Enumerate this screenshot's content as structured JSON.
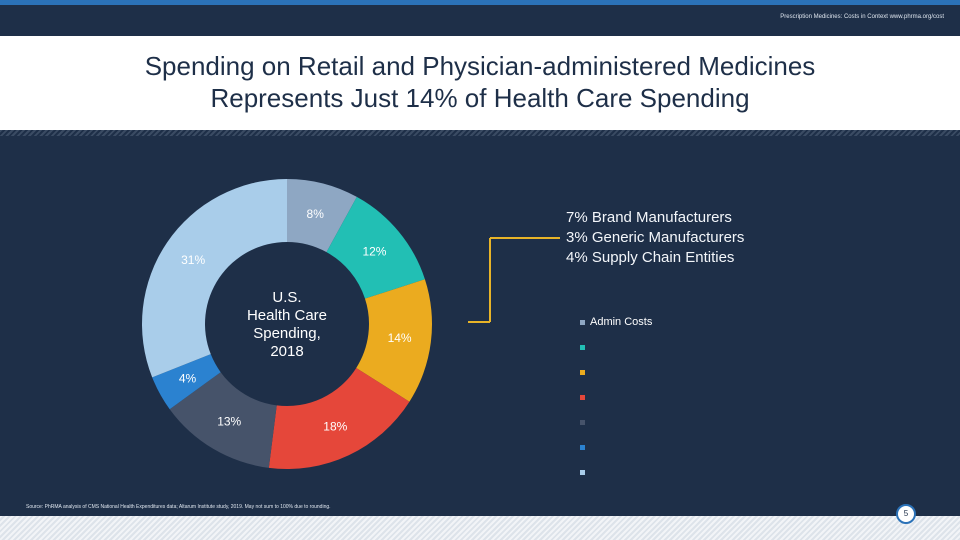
{
  "header": {
    "text": "Prescription Medicines: Costs in Context  www.phrma.org/cost"
  },
  "title": {
    "line1": "Spending on Retail and Physician-administered Medicines",
    "line2": "Represents Just 14% of Health Care Spending"
  },
  "callout": {
    "line1": "7% Brand Manufacturers",
    "line2": "3% Generic Manufacturers",
    "line3": "4% Supply Chain Entities"
  },
  "legend": {
    "items": [
      {
        "label": "Admin Costs",
        "color": "#8ea7c3"
      },
      {
        "label": "",
        "color": "#22bfb4"
      },
      {
        "label": "",
        "color": "#ebab1f"
      },
      {
        "label": "",
        "color": "#e5473a"
      },
      {
        "label": "",
        "color": "#46536a"
      },
      {
        "label": "",
        "color": "#2b82d0"
      },
      {
        "label": "",
        "color": "#a9cdea"
      }
    ]
  },
  "source": "Source: PhRMA analysis of CMS National Health Expenditures data; Altarum Institute study, 2019. May not sum to 100% due to rounding.",
  "page_number": "5",
  "colors": {
    "background": "#1e2f48",
    "accent": "#2b72b8",
    "title": "#1e2f48"
  },
  "chart_data": {
    "type": "pie",
    "title": "U.S. Health Care Spending, 2018",
    "center_label_lines": [
      "U.S.",
      "Health Care",
      "Spending,",
      "2018"
    ],
    "start_angle_deg": 0,
    "direction": "clockwise",
    "slices": [
      {
        "label": "8%",
        "value": 8,
        "color": "#8ea7c3"
      },
      {
        "label": "12%",
        "value": 12,
        "color": "#22bfb4"
      },
      {
        "label": "14%",
        "value": 14,
        "color": "#ebab1f"
      },
      {
        "label": "18%",
        "value": 18,
        "color": "#e5473a"
      },
      {
        "label": "13%",
        "value": 13,
        "color": "#46536a"
      },
      {
        "label": "4%",
        "value": 4,
        "color": "#2b82d0"
      },
      {
        "label": "31%",
        "value": 31,
        "color": "#a9cdea"
      }
    ]
  }
}
